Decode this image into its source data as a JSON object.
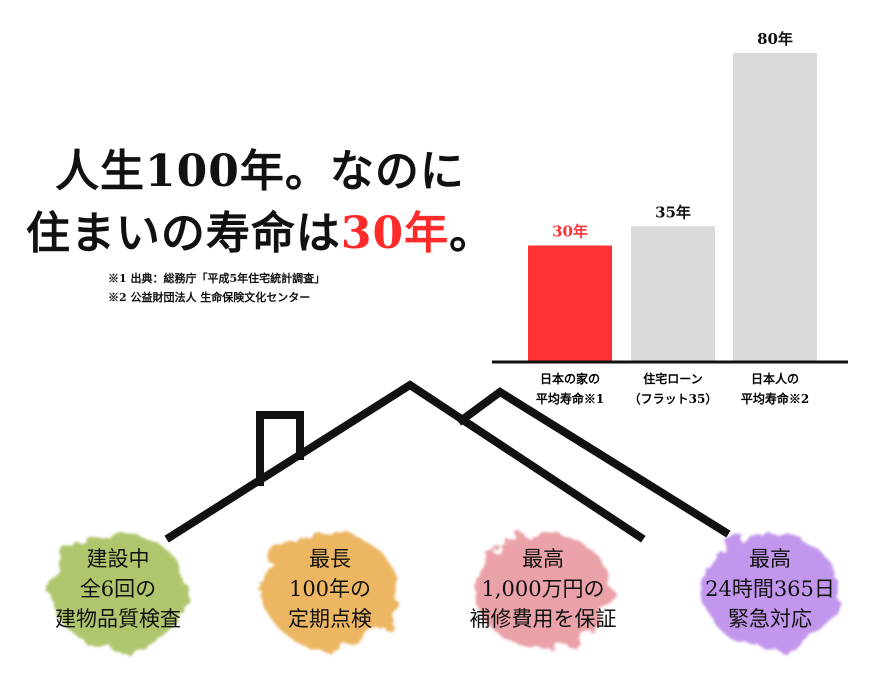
{
  "headline": {
    "line1": "人生100年。なのに",
    "line2_prefix": "住まいの寿命は",
    "line2_highlight": "30年",
    "line2_suffix": "。"
  },
  "notes": [
    "※1 出典：総務庁「平成5年住宅統計調査」",
    "※2 公益財団法人 生命保険文化センター"
  ],
  "chart_data": {
    "type": "bar",
    "categories": [
      [
        "日本の家の",
        "平均寿命※1"
      ],
      [
        "住宅ローン",
        "（フラット35）"
      ],
      [
        "日本人の",
        "平均寿命※2"
      ]
    ],
    "values": [
      30,
      35,
      80
    ],
    "value_labels": [
      "30年",
      "35年",
      "80年"
    ],
    "colors": [
      "#ff3333",
      "#d9d9d9",
      "#d9d9d9"
    ],
    "value_label_colors": [
      "#ff3333",
      "#111111",
      "#111111"
    ],
    "ylim": [
      0,
      80
    ],
    "grid": false,
    "legend": "none"
  },
  "features": [
    {
      "lines": [
        "建設中",
        "全6回の",
        "建物品質検査"
      ],
      "color": "#9cb84a"
    },
    {
      "lines": [
        "最長",
        "100年の",
        "定期点検"
      ],
      "color": "#e8a43a"
    },
    {
      "lines": [
        "最高",
        "1,000万円の",
        "補修費用を保証"
      ],
      "color": "#e58a92"
    },
    {
      "lines": [
        "最高",
        "24時間365日",
        "緊急対応"
      ],
      "color": "#b27be8"
    }
  ]
}
